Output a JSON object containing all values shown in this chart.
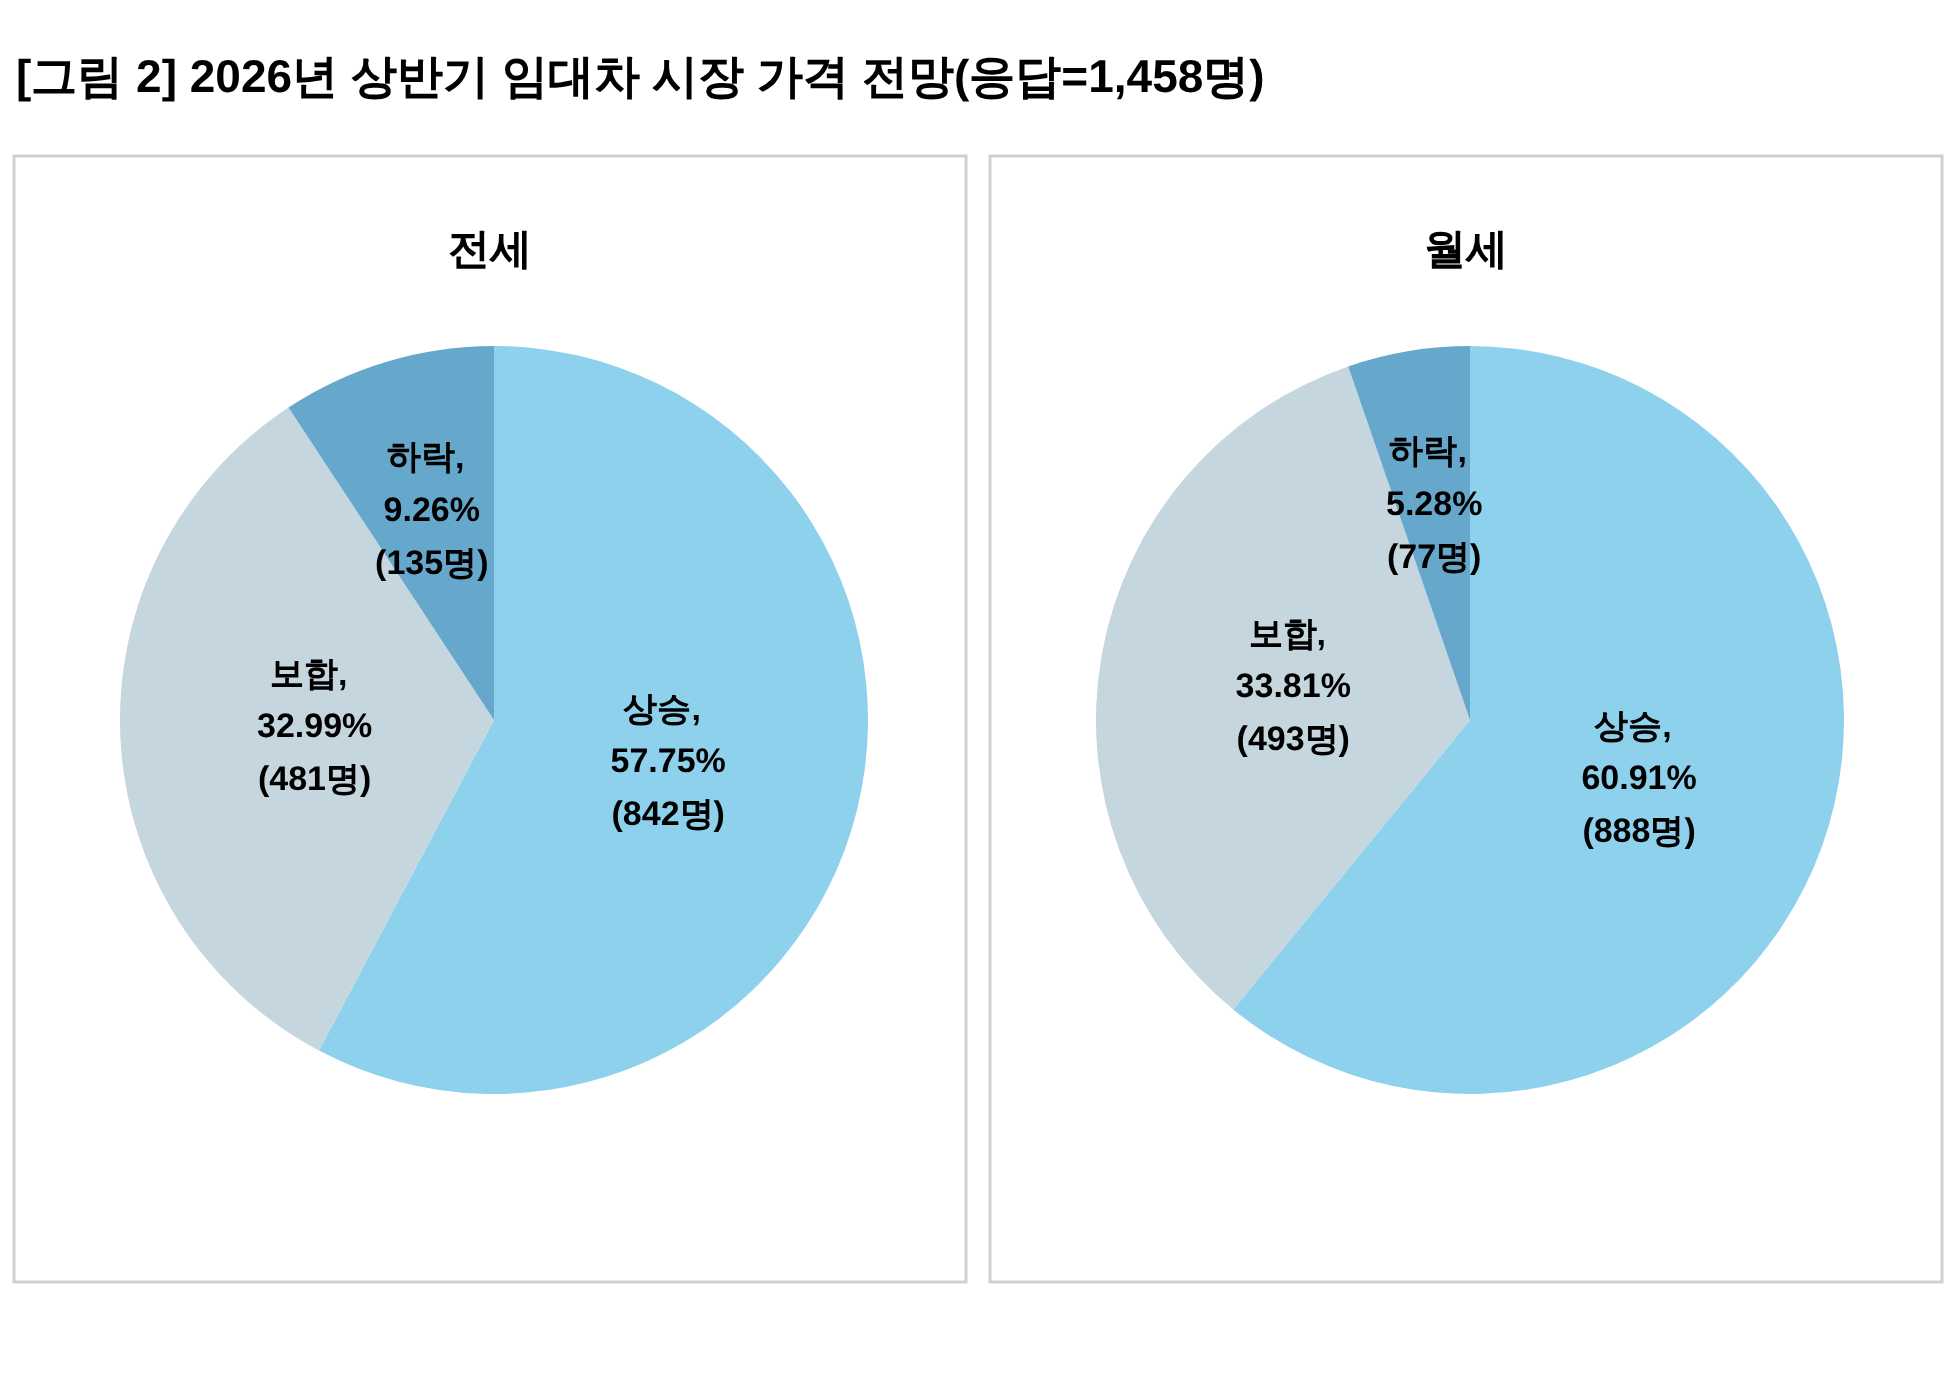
{
  "chart_data": [
    {
      "type": "pie",
      "title": "[그림 2] 2026년 상반기 임대차 시장 가격 전망(응답=1,458명)",
      "subtitle": "전세",
      "categories": [
        "상승",
        "보합",
        "하락"
      ],
      "values": [
        57.75,
        32.99,
        9.26
      ],
      "value_labels": [
        ",\n57.75%\n(842명)",
        ",\n32.99%\n(481명)",
        ",\n9.26%\n(135명)"
      ],
      "colors": [
        "#8dd1ed",
        "#c5d6de",
        "#66a8cb"
      ]
    },
    {
      "type": "pie",
      "subtitle": "월세",
      "categories": [
        "상승",
        "보합",
        "하락"
      ],
      "values": [
        60.91,
        33.81,
        5.28
      ],
      "value_labels": [
        ",\n60.91%\n(888명)",
        ",\n33.81%\n(493명)",
        ",\n5.28%\n(77명)"
      ],
      "colors": [
        "#8dd1ed",
        "#c5d6de",
        "#66a8cb"
      ]
    }
  ]
}
